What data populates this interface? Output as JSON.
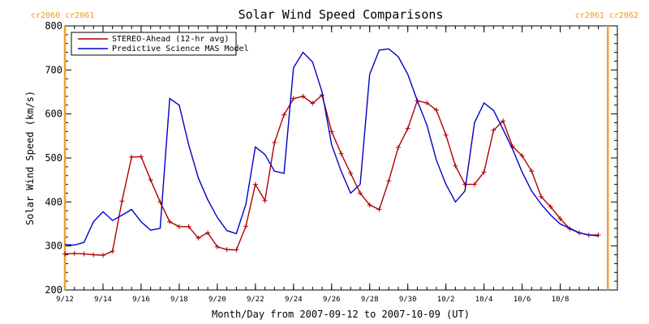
{
  "chart_data": {
    "type": "line",
    "title": "Solar Wind Speed Comparisons",
    "xlabel": "Month/Day from 2007-09-12 to 2007-10-09 (UT)",
    "ylabel": "Solar Wind Speed (km/s)",
    "xlim": [
      "2007-09-12",
      "2007-10-11"
    ],
    "ylim": [
      200,
      800
    ],
    "yticks": [
      200,
      300,
      400,
      500,
      600,
      700,
      800
    ],
    "xticks": [
      {
        "date": "2007-09-12",
        "label": "9/12"
      },
      {
        "date": "2007-09-14",
        "label": "9/14"
      },
      {
        "date": "2007-09-16",
        "label": "9/16"
      },
      {
        "date": "2007-09-18",
        "label": "9/18"
      },
      {
        "date": "2007-09-20",
        "label": "9/20"
      },
      {
        "date": "2007-09-22",
        "label": "9/22"
      },
      {
        "date": "2007-09-24",
        "label": "9/24"
      },
      {
        "date": "2007-09-26",
        "label": "9/26"
      },
      {
        "date": "2007-09-28",
        "label": "9/28"
      },
      {
        "date": "2007-09-30",
        "label": "9/30"
      },
      {
        "date": "2007-10-02",
        "label": "10/2"
      },
      {
        "date": "2007-10-04",
        "label": "10/4"
      },
      {
        "date": "2007-10-06",
        "label": "10/6"
      },
      {
        "date": "2007-10-08",
        "label": "10/8"
      }
    ],
    "carrington_markers": [
      {
        "date": "2007-09-12",
        "label": "cr2060 cr2061",
        "position": "left"
      },
      {
        "date": "2007-10-10 12:00",
        "label": "cr2061 cr2062",
        "position": "right"
      }
    ],
    "legend_position": "top-left",
    "series": [
      {
        "name": "STEREO-Ahead (12-hr avg)",
        "color": "#b00000",
        "marker": "plus",
        "x": [
          "2007-09-12 00:00",
          "2007-09-12 12:00",
          "2007-09-13 00:00",
          "2007-09-13 12:00",
          "2007-09-14 00:00",
          "2007-09-14 12:00",
          "2007-09-15 00:00",
          "2007-09-15 12:00",
          "2007-09-16 00:00",
          "2007-09-16 12:00",
          "2007-09-17 00:00",
          "2007-09-17 12:00",
          "2007-09-18 00:00",
          "2007-09-18 12:00",
          "2007-09-19 00:00",
          "2007-09-19 12:00",
          "2007-09-20 00:00",
          "2007-09-20 12:00",
          "2007-09-21 00:00",
          "2007-09-21 12:00",
          "2007-09-22 00:00",
          "2007-09-22 12:00",
          "2007-09-23 00:00",
          "2007-09-23 12:00",
          "2007-09-24 00:00",
          "2007-09-24 12:00",
          "2007-09-25 00:00",
          "2007-09-25 12:00",
          "2007-09-26 00:00",
          "2007-09-26 12:00",
          "2007-09-27 00:00",
          "2007-09-27 12:00",
          "2007-09-28 00:00",
          "2007-09-28 12:00",
          "2007-09-29 00:00",
          "2007-09-29 12:00",
          "2007-09-30 00:00",
          "2007-09-30 12:00",
          "2007-10-01 00:00",
          "2007-10-01 12:00",
          "2007-10-02 00:00",
          "2007-10-02 12:00",
          "2007-10-03 00:00",
          "2007-10-03 12:00",
          "2007-10-04 00:00",
          "2007-10-04 12:00",
          "2007-10-05 00:00",
          "2007-10-05 12:00",
          "2007-10-06 00:00",
          "2007-10-06 12:00",
          "2007-10-07 00:00",
          "2007-10-07 12:00",
          "2007-10-08 00:00",
          "2007-10-08 12:00",
          "2007-10-09 00:00",
          "2007-10-09 12:00",
          "2007-10-10 00:00"
        ],
        "y": [
          282,
          283,
          282,
          280,
          279,
          288,
          402,
          502,
          503,
          450,
          400,
          355,
          344,
          344,
          318,
          330,
          298,
          292,
          291,
          345,
          440,
          403,
          535,
          598,
          635,
          640,
          624,
          643,
          560,
          510,
          465,
          420,
          393,
          383,
          448,
          524,
          567,
          630,
          625,
          609,
          552,
          482,
          440,
          440,
          468,
          563,
          584,
          526,
          505,
          470,
          412,
          389,
          362,
          339,
          330,
          325,
          325
        ]
      },
      {
        "name": "Predictive Science MAS Model",
        "color": "#0000c8",
        "marker": "none",
        "x": [
          "2007-09-12 00:00",
          "2007-09-12 12:00",
          "2007-09-13 00:00",
          "2007-09-13 12:00",
          "2007-09-14 00:00",
          "2007-09-14 12:00",
          "2007-09-15 00:00",
          "2007-09-15 12:00",
          "2007-09-16 00:00",
          "2007-09-16 12:00",
          "2007-09-17 00:00",
          "2007-09-17 12:00",
          "2007-09-18 00:00",
          "2007-09-18 12:00",
          "2007-09-19 00:00",
          "2007-09-19 12:00",
          "2007-09-20 00:00",
          "2007-09-20 12:00",
          "2007-09-21 00:00",
          "2007-09-21 12:00",
          "2007-09-22 00:00",
          "2007-09-22 12:00",
          "2007-09-23 00:00",
          "2007-09-23 12:00",
          "2007-09-24 00:00",
          "2007-09-24 12:00",
          "2007-09-25 00:00",
          "2007-09-25 12:00",
          "2007-09-26 00:00",
          "2007-09-26 12:00",
          "2007-09-27 00:00",
          "2007-09-27 12:00",
          "2007-09-28 00:00",
          "2007-09-28 12:00",
          "2007-09-29 00:00",
          "2007-09-29 12:00",
          "2007-09-30 00:00",
          "2007-09-30 12:00",
          "2007-10-01 00:00",
          "2007-10-01 12:00",
          "2007-10-02 00:00",
          "2007-10-02 12:00",
          "2007-10-03 00:00",
          "2007-10-03 12:00",
          "2007-10-04 00:00",
          "2007-10-04 12:00",
          "2007-10-05 00:00",
          "2007-10-05 12:00",
          "2007-10-06 00:00",
          "2007-10-06 12:00",
          "2007-10-07 00:00",
          "2007-10-07 12:00",
          "2007-10-08 00:00",
          "2007-10-08 12:00",
          "2007-10-09 00:00",
          "2007-10-09 12:00",
          "2007-10-10 00:00"
        ],
        "y": [
          303,
          302,
          308,
          355,
          378,
          358,
          370,
          383,
          355,
          336,
          340,
          635,
          620,
          530,
          455,
          405,
          365,
          335,
          328,
          395,
          525,
          508,
          470,
          465,
          705,
          740,
          718,
          650,
          530,
          470,
          420,
          440,
          690,
          745,
          748,
          730,
          690,
          630,
          575,
          495,
          440,
          400,
          425,
          580,
          625,
          608,
          565,
          520,
          468,
          425,
          395,
          370,
          350,
          340,
          330,
          325,
          323
        ]
      }
    ]
  }
}
